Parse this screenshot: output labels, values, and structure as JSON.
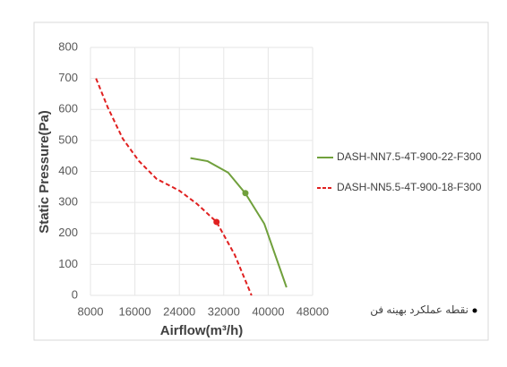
{
  "chart_data": {
    "type": "line",
    "x_label": "Airflow(m³/h)",
    "y_label": "Static Pressure(Pa)",
    "xlim": [
      8000,
      48000
    ],
    "xticks": [
      8000,
      16000,
      24000,
      32000,
      40000,
      48000
    ],
    "ylim": [
      0,
      800
    ],
    "yticks": [
      0,
      100,
      200,
      300,
      400,
      500,
      600,
      700,
      800
    ],
    "grid": true,
    "legend": "right",
    "marker_legend": "نقطه عملکرد بهینه فن",
    "series": [
      {
        "name": "DASH-NN7.5-4T-900-22-F300",
        "color": "#70a03c",
        "dashed": false,
        "x": [
          26000,
          29100,
          32800,
          35900,
          39300,
          43300
        ],
        "values": [
          443,
          433,
          396,
          329,
          231,
          26
        ],
        "marker_x": 35900,
        "marker_y": 330
      },
      {
        "name": "DASH-NN5.5-4T-900-18-F300",
        "color": "#e02020",
        "dashed": true,
        "x": [
          9000,
          11100,
          13800,
          16700,
          19900,
          24000,
          27200,
          30700,
          34000,
          37000
        ],
        "values": [
          700,
          607,
          506,
          434,
          376,
          338,
          295,
          237,
          130,
          0
        ],
        "marker_x": 30700,
        "marker_y": 237
      }
    ]
  }
}
